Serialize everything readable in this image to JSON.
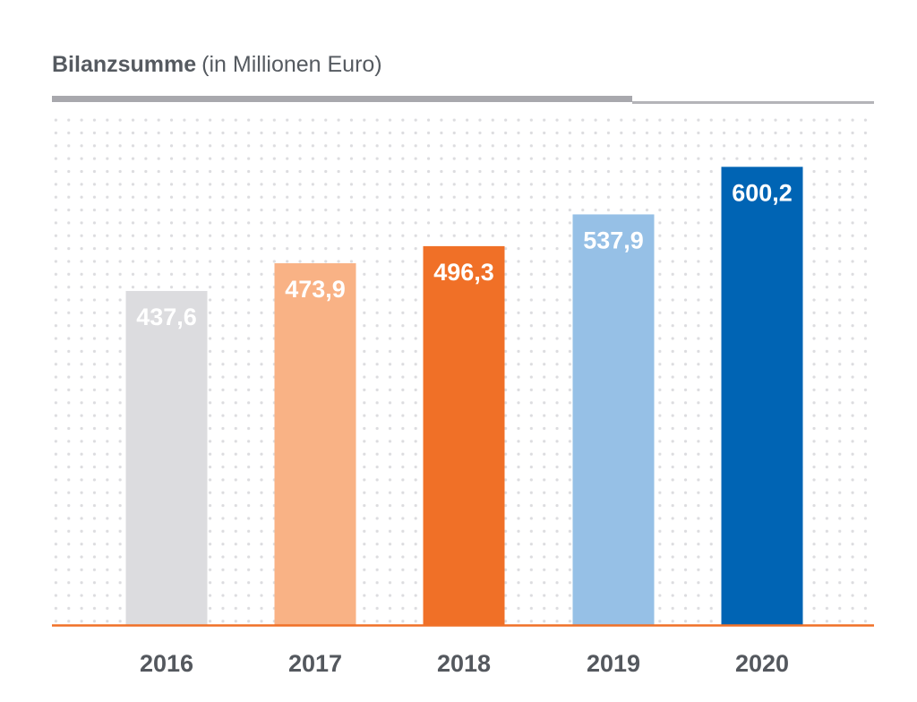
{
  "chart_data": {
    "type": "bar",
    "title": "Bilanzsumme",
    "subtitle": "(in Millionen Euro)",
    "categories": [
      "2016",
      "2017",
      "2018",
      "2019",
      "2020"
    ],
    "values": [
      437.6,
      473.9,
      496.3,
      537.9,
      600.2
    ],
    "value_labels": [
      "437,6",
      "473,9",
      "496,3",
      "537,9",
      "600,2"
    ],
    "colors": [
      "#dcdcdf",
      "#f9b285",
      "#f07027",
      "#96c0e6",
      "#0064b4"
    ],
    "ylim": [
      0,
      640
    ],
    "grid": "dotted background",
    "baseline_color": "#f07027"
  }
}
